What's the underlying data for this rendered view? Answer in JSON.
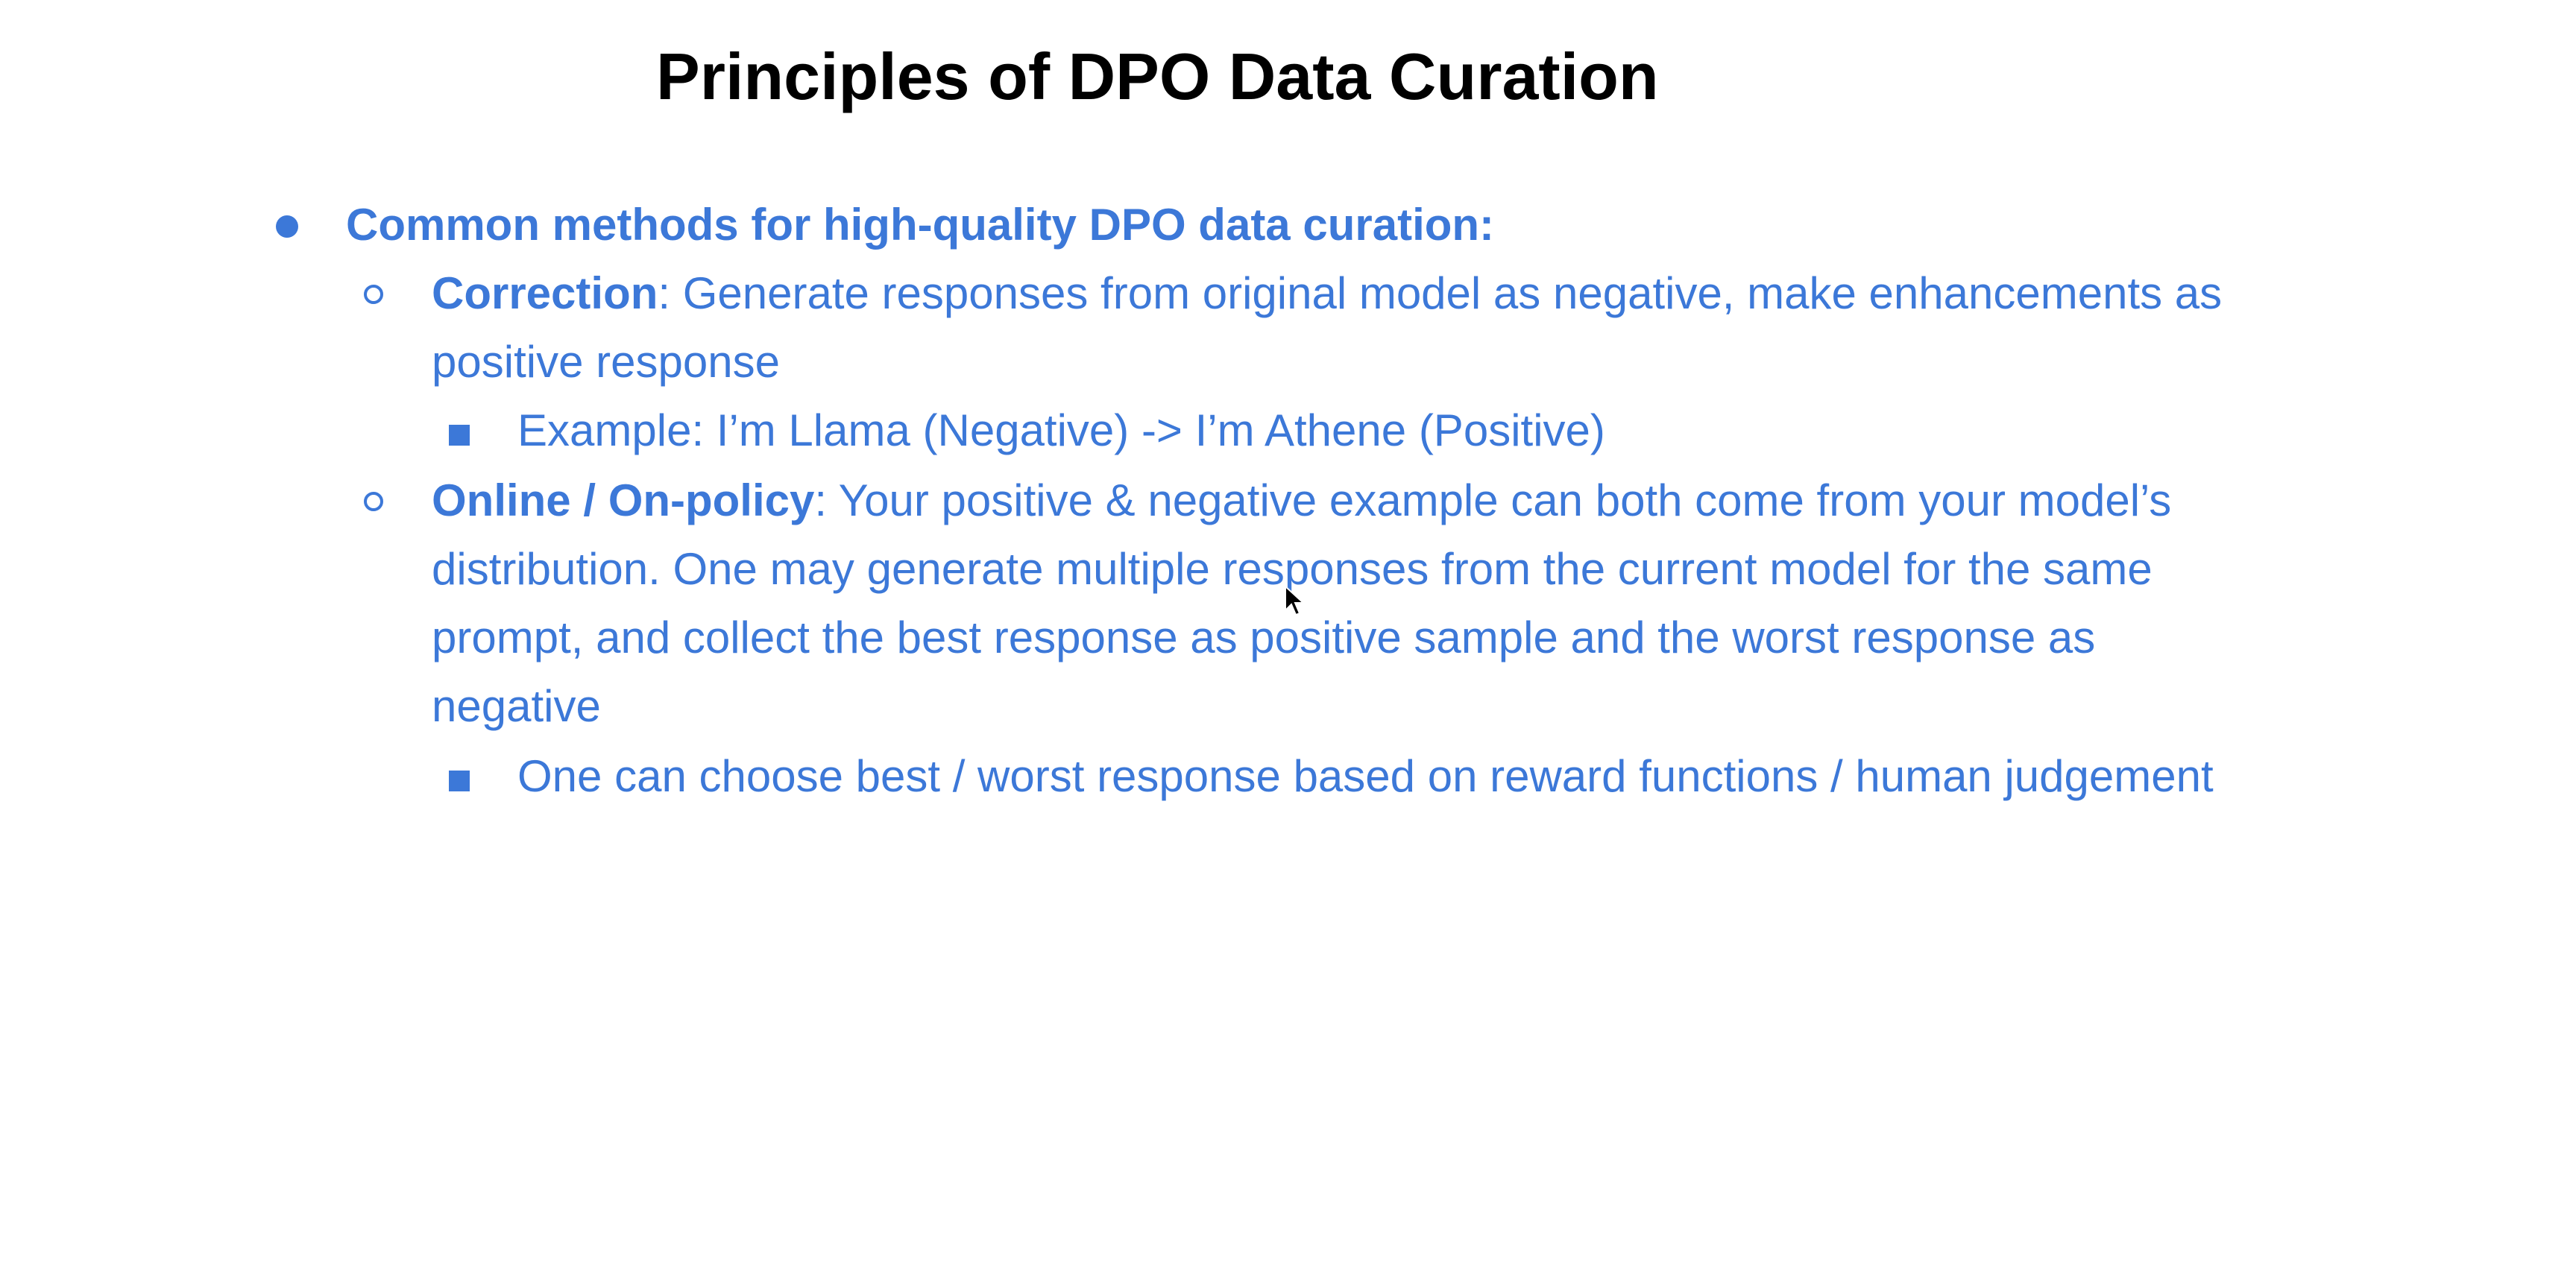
{
  "slide": {
    "title": "Principles of DPO Data Curation",
    "level1": {
      "text": "Common methods for high-quality DPO data curation:"
    },
    "correction": {
      "label": "Correction",
      "line1": ": Generate responses from original model as negative, make enhancements as",
      "line2": "positive response",
      "example": "Example: I’m Llama (Negative) -> I’m Athene (Positive)"
    },
    "online": {
      "label": "Online / On-policy",
      "line1": ": Your positive & negative example can both come from your model’s",
      "line2": "distribution. One may generate multiple responses from the current model for the same",
      "line3": "prompt, and collect the best response as positive sample and the worst response as",
      "line4": "negative",
      "example": "One can choose best / worst response based on reward functions / human judgement"
    },
    "colors": {
      "accent": "#3c78d8",
      "title": "#000000",
      "background": "#ffffff"
    }
  }
}
